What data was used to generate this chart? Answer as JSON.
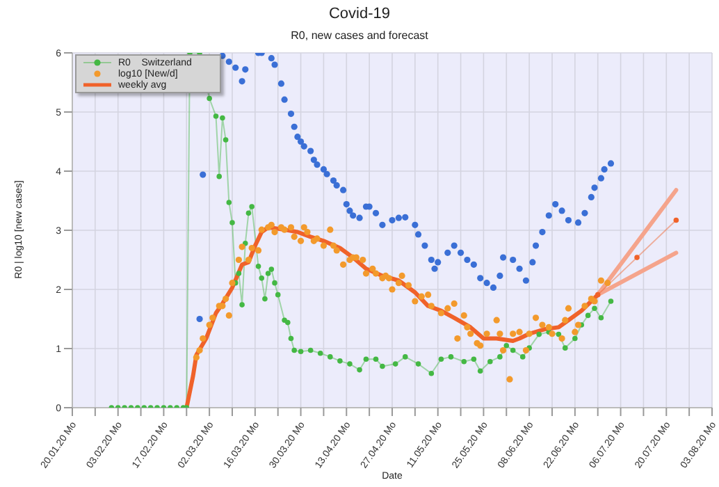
{
  "chart_data": {
    "type": "line",
    "title": "Covid-19",
    "subtitle": "R0, new cases and forecast",
    "xlabel": "Date",
    "ylabel": "R0 | log10 [new cases]",
    "xlim": [
      "--01-20",
      "--08-03"
    ],
    "ylim": [
      0,
      6
    ],
    "yticks": [
      0,
      1,
      2,
      3,
      4,
      5,
      6
    ],
    "xticks": [
      {
        "value": "--01-20",
        "label": "20.01.20 Mo"
      },
      {
        "value": "--01-27",
        "label": null
      },
      {
        "value": "--02-03",
        "label": "03.02.20 Mo"
      },
      {
        "value": "--02-10",
        "label": null
      },
      {
        "value": "--02-17",
        "label": "17.02.20 Mo"
      },
      {
        "value": "--02-24",
        "label": null
      },
      {
        "value": "--03-02",
        "label": "02.03.20 Mo"
      },
      {
        "value": "--03-09",
        "label": null
      },
      {
        "value": "--03-16",
        "label": "16.03.20 Mo"
      },
      {
        "value": "--03-23",
        "label": null
      },
      {
        "value": "--03-30",
        "label": "30.03.20 Mo"
      },
      {
        "value": "--04-06",
        "label": null
      },
      {
        "value": "--04-13",
        "label": "13.04.20 Mo"
      },
      {
        "value": "--04-20",
        "label": null
      },
      {
        "value": "--04-27",
        "label": "27.04.20 Mo"
      },
      {
        "value": "--05-04",
        "label": null
      },
      {
        "value": "--05-11",
        "label": "11.05.20 Mo"
      },
      {
        "value": "--05-18",
        "label": null
      },
      {
        "value": "--05-25",
        "label": "25.05.20 Mo"
      },
      {
        "value": "--06-01",
        "label": null
      },
      {
        "value": "--06-08",
        "label": "08.06.20 Mo"
      },
      {
        "value": "--06-15",
        "label": null
      },
      {
        "value": "--06-22",
        "label": "22.06.20 Mo"
      },
      {
        "value": "--06-29",
        "label": null
      },
      {
        "value": "--07-06",
        "label": "06.07.20 Mo"
      },
      {
        "value": "--07-13",
        "label": null
      },
      {
        "value": "--07-20",
        "label": "20.07.20 Mo"
      },
      {
        "value": "--07-27",
        "label": null
      },
      {
        "value": "--08-03",
        "label": "03.08.20 Mo"
      }
    ],
    "grid": true,
    "legend": "top left",
    "series": [
      {
        "name": "R0    Switzerland",
        "type": "line",
        "marker": "circle",
        "color": "#44b844",
        "x": [
          "--02-01",
          "--02-03",
          "--02-05",
          "--02-07",
          "--02-09",
          "--02-11",
          "--02-13",
          "--02-15",
          "--02-17",
          "--02-19",
          "--02-21",
          "--02-23",
          "--02-24",
          "--02-25",
          "--02-28",
          "--03-02",
          "--03-04",
          "--03-05",
          "--03-06",
          "--03-07",
          "--03-08",
          "--03-09",
          "--03-10",
          "--03-11",
          "--03-12",
          "--03-13",
          "--03-14",
          "--03-15",
          "--03-17",
          "--03-18",
          "--03-19",
          "--03-20",
          "--03-21",
          "--03-22",
          "--03-23",
          "--03-25",
          "--03-26",
          "--03-27",
          "--03-28",
          "--03-30",
          "--04-02",
          "--04-05",
          "--04-08",
          "--04-11",
          "--04-14",
          "--04-17",
          "--04-19",
          "--04-22",
          "--04-24",
          "--04-28",
          "--05-01",
          "--05-05",
          "--05-09",
          "--05-12",
          "--05-15",
          "--05-19",
          "--05-22",
          "--05-24",
          "--05-27",
          "--05-30",
          "--06-01",
          "--06-03",
          "--06-06",
          "--06-08",
          "--06-11",
          "--06-14",
          "--06-17",
          "--06-19",
          "--06-22",
          "--06-24",
          "--06-26",
          "--06-28",
          "--06-30",
          "--07-03"
        ],
        "values": [
          0,
          0,
          0,
          0,
          0,
          0,
          0,
          0,
          0,
          0,
          0,
          0,
          0,
          6,
          6,
          5.23,
          4.93,
          3.91,
          4.9,
          4.53,
          3.47,
          3.13,
          2.11,
          2.27,
          1.74,
          2.78,
          3.29,
          3.4,
          2.39,
          2.19,
          1.84,
          2.27,
          2.34,
          2.11,
          1.91,
          1.48,
          1.44,
          1.17,
          0.97,
          0.95,
          0.97,
          0.92,
          0.86,
          0.79,
          0.74,
          0.64,
          0.82,
          0.82,
          0.7,
          0.74,
          0.86,
          0.74,
          0.58,
          0.82,
          0.86,
          0.78,
          0.82,
          0.62,
          0.78,
          0.86,
          1.05,
          0.97,
          0.86,
          1.01,
          1.24,
          1.28,
          1.24,
          1.01,
          1.17,
          1.4,
          1.56,
          1.68,
          1.52,
          1.8
        ]
      },
      {
        "name": "log10 [New/d]",
        "type": "scatter",
        "color": "#f39a2c",
        "x": [
          "--02-27",
          "--02-28",
          "--02-29",
          "--03-02",
          "--03-03",
          "--03-05",
          "--03-06",
          "--03-07",
          "--03-08",
          "--03-09",
          "--03-11",
          "--03-12",
          "--03-14",
          "--03-15",
          "--03-17",
          "--03-18",
          "--03-20",
          "--03-21",
          "--03-22",
          "--03-24",
          "--03-25",
          "--03-27",
          "--03-28",
          "--03-30",
          "--03-31",
          "--04-01",
          "--04-03",
          "--04-04",
          "--04-06",
          "--04-08",
          "--04-09",
          "--04-10",
          "--04-12",
          "--04-14",
          "--04-15",
          "--04-16",
          "--04-18",
          "--04-19",
          "--04-21",
          "--04-22",
          "--04-24",
          "--04-25",
          "--04-26",
          "--04-27",
          "--04-29",
          "--04-30",
          "--05-02",
          "--05-04",
          "--05-06",
          "--05-08",
          "--05-09",
          "--05-12",
          "--05-14",
          "--05-16",
          "--05-17",
          "--05-19",
          "--05-20",
          "--05-21",
          "--05-23",
          "--05-24",
          "--05-26",
          "--05-29",
          "--05-30",
          "--05-31",
          "--06-02",
          "--06-03",
          "--06-05",
          "--06-07",
          "--06-08",
          "--06-10",
          "--06-12",
          "--06-14",
          "--06-15",
          "--06-18",
          "--06-19",
          "--06-20",
          "--06-22",
          "--06-23",
          "--06-25",
          "--06-27",
          "--06-28",
          "--06-30",
          "--07-02"
        ],
        "values": [
          0.85,
          0.97,
          1.17,
          1.4,
          1.52,
          1.72,
          1.72,
          1.84,
          1.56,
          2.11,
          2.5,
          2.72,
          2.5,
          2.7,
          2.66,
          3.01,
          3.05,
          3.09,
          2.97,
          3.05,
          3.01,
          3.05,
          2.89,
          2.82,
          3.05,
          2.97,
          2.82,
          2.86,
          2.74,
          3.01,
          2.74,
          2.66,
          2.42,
          2.5,
          2.54,
          2.54,
          2.5,
          2.27,
          2.35,
          2.27,
          2.19,
          2.23,
          2.19,
          2.0,
          2.11,
          2.23,
          2.07,
          1.8,
          1.88,
          1.91,
          1.72,
          1.6,
          1.68,
          1.76,
          1.17,
          1.56,
          1.36,
          1.25,
          1.09,
          1.05,
          1.25,
          1.48,
          1.25,
          0.97,
          0.48,
          1.25,
          1.28,
          0.97,
          1.25,
          1.52,
          1.4,
          1.36,
          1.25,
          1.17,
          1.48,
          1.68,
          1.28,
          1.4,
          1.72,
          1.84,
          1.8,
          2.15,
          2.11
        ]
      },
      {
        "name": "weekly avg",
        "type": "line",
        "color": "#f0622a",
        "x": [
          "--02-24",
          "--02-26",
          "--02-27",
          "--03-01",
          "--03-04",
          "--03-06",
          "--03-09",
          "--03-12",
          "--03-14",
          "--03-16",
          "--03-18",
          "--03-20",
          "--03-25",
          "--03-29",
          "--04-02",
          "--04-06",
          "--04-11",
          "--04-15",
          "--04-19",
          "--04-24",
          "--04-29",
          "--05-04",
          "--05-08",
          "--05-12",
          "--05-16",
          "--05-21",
          "--05-25",
          "--05-29",
          "--06-03",
          "--06-05",
          "--06-08",
          "--06-13",
          "--06-17",
          "--06-20",
          "--06-24",
          "--06-27",
          "--06-29"
        ],
        "values": [
          0,
          0.54,
          0.89,
          1.17,
          1.6,
          1.76,
          2.03,
          2.42,
          2.46,
          2.74,
          2.97,
          3.05,
          3.01,
          2.97,
          2.89,
          2.82,
          2.7,
          2.54,
          2.35,
          2.23,
          2.15,
          1.95,
          1.72,
          1.64,
          1.52,
          1.36,
          1.17,
          1.17,
          1.13,
          1.17,
          1.25,
          1.33,
          1.36,
          1.48,
          1.64,
          1.8,
          1.91
        ]
      },
      {
        "type": "scatter",
        "color": "#3a6fd6",
        "x": [
          "--02-28",
          "--02-29",
          "--03-06",
          "--03-08",
          "--03-10",
          "--03-12",
          "--03-13",
          "--03-17",
          "--03-18",
          "--03-21",
          "--03-22",
          "--03-24",
          "--03-25",
          "--03-27",
          "--03-28",
          "--03-29",
          "--03-30",
          "--03-31",
          "--04-02",
          "--04-03",
          "--04-04",
          "--04-06",
          "--04-07",
          "--04-09",
          "--04-10",
          "--04-12",
          "--04-13",
          "--04-14",
          "--04-15",
          "--04-17",
          "--04-19",
          "--04-20",
          "--04-22",
          "--04-24",
          "--04-27",
          "--04-29",
          "--05-01",
          "--05-04",
          "--05-05",
          "--05-07",
          "--05-09",
          "--05-10",
          "--05-11",
          "--05-14",
          "--05-16",
          "--05-18",
          "--05-20",
          "--05-22",
          "--05-24",
          "--05-26",
          "--05-28",
          "--05-30",
          "--05-31",
          "--06-03",
          "--06-05",
          "--06-07",
          "--06-09",
          "--06-10",
          "--06-12",
          "--06-14",
          "--06-16",
          "--06-18",
          "--06-20",
          "--06-23",
          "--06-25",
          "--06-27",
          "--06-28",
          "--06-30",
          "--07-01",
          "--07-03"
        ],
        "values": [
          1.5,
          3.94,
          5.95,
          5.85,
          5.75,
          5.52,
          5.72,
          6,
          6,
          5.91,
          5.8,
          5.48,
          5.21,
          4.97,
          4.75,
          4.58,
          4.5,
          4.42,
          4.34,
          4.19,
          4.11,
          4.03,
          3.95,
          3.84,
          3.76,
          3.68,
          3.44,
          3.33,
          3.25,
          3.21,
          3.4,
          3.4,
          3.29,
          3.09,
          3.17,
          3.21,
          3.22,
          3.09,
          2.93,
          2.74,
          2.5,
          2.35,
          2.46,
          2.62,
          2.74,
          2.62,
          2.5,
          2.42,
          2.19,
          2.11,
          2.03,
          2.23,
          2.54,
          2.5,
          2.35,
          2.15,
          2.46,
          2.74,
          2.97,
          3.25,
          3.44,
          3.33,
          3.17,
          3.13,
          3.29,
          3.56,
          3.72,
          3.88,
          4.03,
          4.13
        ]
      },
      {
        "type": "line",
        "color": "#f5a48c",
        "x": [
          "--06-29",
          "--07-23"
        ],
        "values": [
          1.91,
          3.68
        ]
      },
      {
        "type": "line",
        "color": "#f5a48c",
        "x": [
          "--06-29",
          "--07-23"
        ],
        "values": [
          1.91,
          2.62
        ]
      },
      {
        "type": "line",
        "marker": "circle",
        "color": "#f0622a",
        "x": [
          "--06-29",
          "--07-11",
          "--07-23"
        ],
        "values": [
          1.91,
          2.54,
          3.17
        ]
      }
    ]
  }
}
